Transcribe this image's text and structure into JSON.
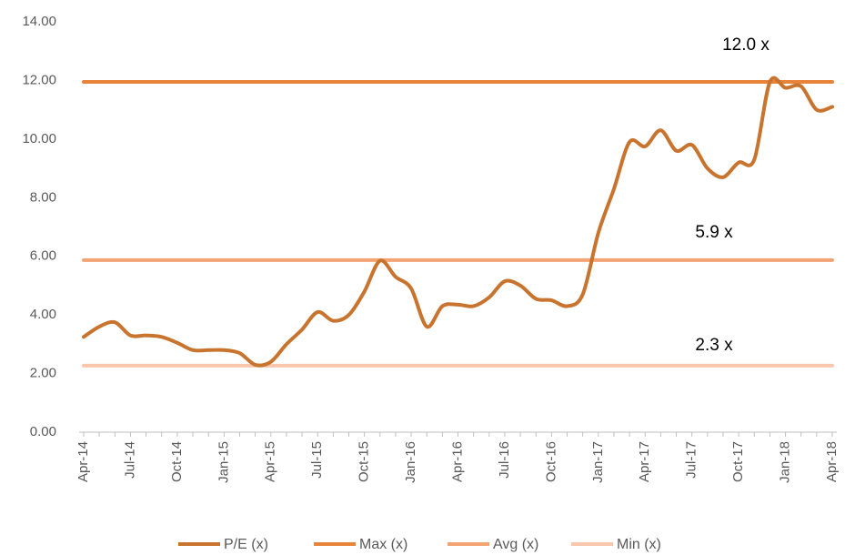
{
  "chart_data": {
    "type": "line",
    "categories": [
      "Apr-14",
      null,
      null,
      "Jul-14",
      null,
      null,
      "Oct-14",
      null,
      null,
      "Jan-15",
      null,
      null,
      "Apr-15",
      null,
      null,
      "Jul-15",
      null,
      null,
      "Oct-15",
      null,
      null,
      "Jan-16",
      null,
      null,
      "Apr-16",
      null,
      null,
      "Jul-16",
      null,
      null,
      "Oct-16",
      null,
      null,
      "Jan-17",
      null,
      null,
      "Apr-17",
      null,
      null,
      "Jul-17",
      null,
      null,
      "Oct-17",
      null,
      null,
      "Jan-18",
      null,
      null,
      "Apr-18"
    ],
    "series": [
      {
        "name": "P/E (x)",
        "color": "#c8742f",
        "values": [
          3.25,
          3.6,
          3.75,
          3.3,
          3.3,
          3.25,
          3.05,
          2.8,
          2.8,
          2.8,
          2.7,
          2.3,
          2.4,
          3.0,
          3.5,
          4.1,
          3.8,
          4.0,
          4.8,
          5.85,
          5.3,
          4.9,
          3.6,
          4.3,
          4.35,
          4.3,
          4.6,
          5.15,
          5.0,
          4.55,
          4.5,
          4.3,
          4.7,
          6.8,
          8.3,
          9.9,
          9.75,
          10.3,
          9.6,
          9.8,
          9.0,
          8.7,
          9.2,
          9.3,
          11.95,
          11.75,
          11.8,
          11.0,
          11.1
        ]
      },
      {
        "name": "Max (x)",
        "color": "#e8833a",
        "values": [
          11.95,
          11.95,
          11.95,
          11.95,
          11.95,
          11.95,
          11.95,
          11.95,
          11.95,
          11.95,
          11.95,
          11.95,
          11.95,
          11.95,
          11.95,
          11.95,
          11.95,
          11.95,
          11.95,
          11.95,
          11.95,
          11.95,
          11.95,
          11.95,
          11.95,
          11.95,
          11.95,
          11.95,
          11.95,
          11.95,
          11.95,
          11.95,
          11.95,
          11.95,
          11.95,
          11.95,
          11.95,
          11.95,
          11.95,
          11.95,
          11.95,
          11.95,
          11.95,
          11.95,
          11.95,
          11.95,
          11.95,
          11.95,
          11.95
        ]
      },
      {
        "name": "Avg (x)",
        "color": "#f4a372",
        "values": [
          5.87,
          5.87,
          5.87,
          5.87,
          5.87,
          5.87,
          5.87,
          5.87,
          5.87,
          5.87,
          5.87,
          5.87,
          5.87,
          5.87,
          5.87,
          5.87,
          5.87,
          5.87,
          5.87,
          5.87,
          5.87,
          5.87,
          5.87,
          5.87,
          5.87,
          5.87,
          5.87,
          5.87,
          5.87,
          5.87,
          5.87,
          5.87,
          5.87,
          5.87,
          5.87,
          5.87,
          5.87,
          5.87,
          5.87,
          5.87,
          5.87,
          5.87,
          5.87,
          5.87,
          5.87,
          5.87,
          5.87,
          5.87,
          5.87
        ]
      },
      {
        "name": "Min (x)",
        "color": "#f8c7ae",
        "values": [
          2.27,
          2.27,
          2.27,
          2.27,
          2.27,
          2.27,
          2.27,
          2.27,
          2.27,
          2.27,
          2.27,
          2.27,
          2.27,
          2.27,
          2.27,
          2.27,
          2.27,
          2.27,
          2.27,
          2.27,
          2.27,
          2.27,
          2.27,
          2.27,
          2.27,
          2.27,
          2.27,
          2.27,
          2.27,
          2.27,
          2.27,
          2.27,
          2.27,
          2.27,
          2.27,
          2.27,
          2.27,
          2.27,
          2.27,
          2.27,
          2.27,
          2.27,
          2.27,
          2.27,
          2.27,
          2.27,
          2.27,
          2.27,
          2.27
        ]
      }
    ],
    "annotations": [
      "12.0 x",
      "5.9 x",
      "2.3 x"
    ],
    "ylim": [
      0,
      14
    ],
    "yticks": [
      {
        "value": 0,
        "label": "0.00"
      },
      {
        "value": 2,
        "label": "2.00"
      },
      {
        "value": 4,
        "label": "4.00"
      },
      {
        "value": 6,
        "label": "6.00"
      },
      {
        "value": 8,
        "label": "8.00"
      },
      {
        "value": 10,
        "label": "10.00"
      },
      {
        "value": 12,
        "label": "12.00"
      },
      {
        "value": 14,
        "label": "14.00"
      }
    ],
    "grid": false,
    "legend": "bottom"
  }
}
